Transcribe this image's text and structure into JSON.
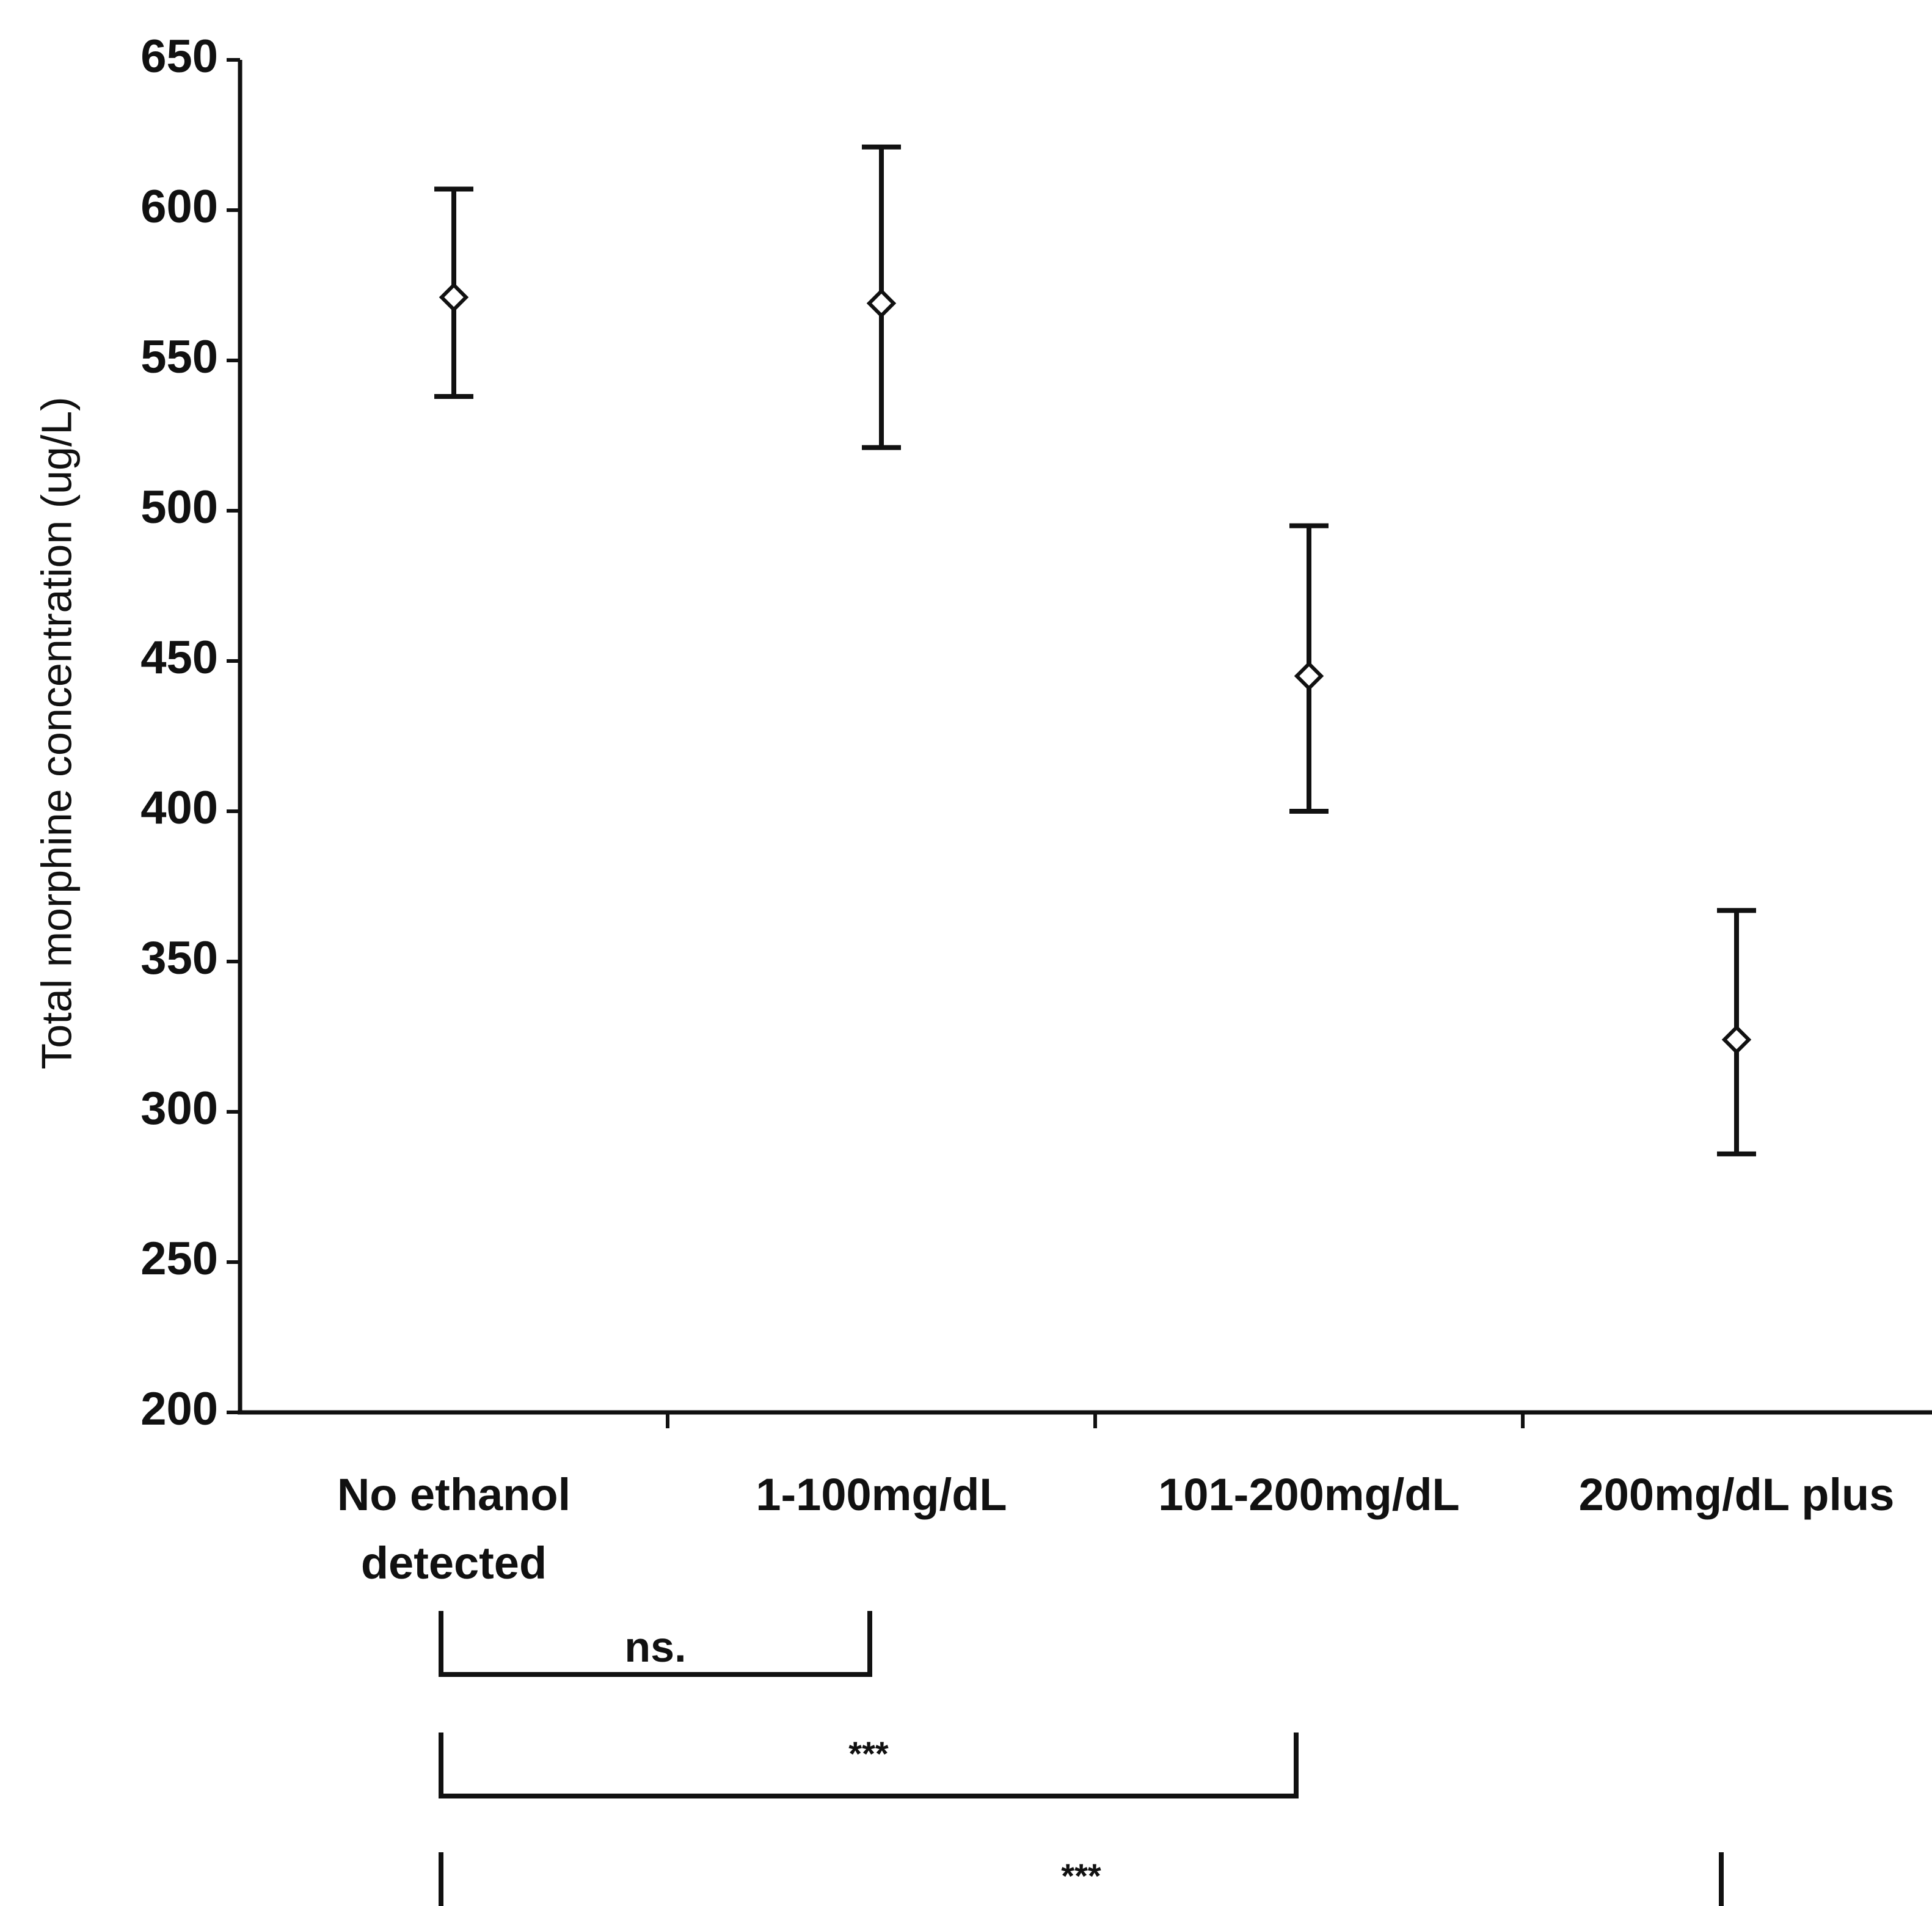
{
  "chart_data": {
    "type": "scatter",
    "title": "",
    "xlabel": "",
    "ylabel": "Total morphine concentration (ug/L)",
    "ylim": [
      200,
      650
    ],
    "yticks": [
      200,
      250,
      300,
      350,
      400,
      450,
      500,
      550,
      600,
      650
    ],
    "grid": false,
    "legend": "none",
    "marker": "open-diamond",
    "color": "#111111",
    "categories": [
      [
        "No ethanol",
        "detected"
      ],
      [
        "1-100mg/dL"
      ],
      [
        "101-200mg/dL"
      ],
      [
        "200mg/dL plus"
      ]
    ],
    "values": [
      571,
      569,
      445,
      324
    ],
    "error_low": [
      538,
      521,
      400,
      286
    ],
    "error_high": [
      607,
      621,
      495,
      367
    ],
    "significance": [
      {
        "from": 0,
        "to": 1,
        "label": "ns."
      },
      {
        "from": 0,
        "to": 2,
        "label": "***"
      },
      {
        "from": 0,
        "to": 3,
        "label": "***"
      }
    ]
  }
}
